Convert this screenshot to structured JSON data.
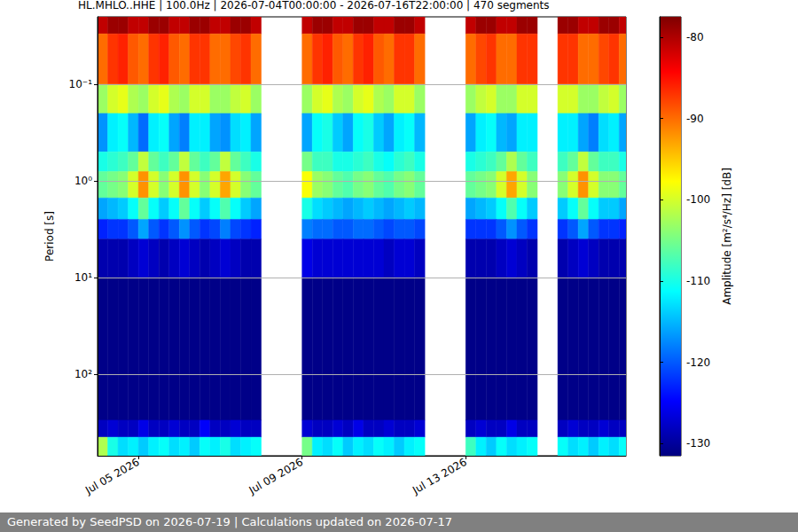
{
  "chart_data": {
    "type": "heatmap",
    "title": "HL.MHLO..HHE | 100.0Hz | 2026-07-04T00:00:00 - 2026-07-16T22:00:00 | 470 segments",
    "footer": "Generated by SeedPSD on 2026-07-19 | Calculations updated on 2026-07-17",
    "ylabel": "Period [s]",
    "colorbar_label": "Amplitude [m²/s⁴/Hz] [dB]",
    "log": "y",
    "grid": true,
    "xlim": [
      "2026-07-04T00:00:00",
      "2026-07-16T22:00:00"
    ],
    "xticks": [
      {
        "value": "2026-07-05T00:00:00",
        "label": "Jul 05 2026"
      },
      {
        "value": "2026-07-09T00:00:00",
        "label": "Jul 09 2026"
      },
      {
        "value": "2026-07-13T00:00:00",
        "label": "Jul 13 2026"
      }
    ],
    "ylim": [
      0.02,
      700
    ],
    "yticks": [
      {
        "value": 0.1,
        "label": "10⁻¹"
      },
      {
        "value": 1,
        "label": "10⁰"
      },
      {
        "value": 10,
        "label": "10¹"
      },
      {
        "value": 100,
        "label": "10²"
      }
    ],
    "clim": [
      -131.5,
      -77.5
    ],
    "cticks": [
      -130,
      -120,
      -110,
      -100,
      -90,
      -80
    ],
    "x_edges": [
      "2026-07-04T00:00:00",
      "2026-07-04T06:00:00",
      "2026-07-04T12:00:00",
      "2026-07-04T18:00:00",
      "2026-07-05T00:00:00",
      "2026-07-05T06:00:00",
      "2026-07-05T12:00:00",
      "2026-07-05T18:00:00",
      "2026-07-06T00:00:00",
      "2026-07-06T06:00:00",
      "2026-07-06T12:00:00",
      "2026-07-06T18:00:00",
      "2026-07-07T00:00:00",
      "2026-07-07T06:00:00",
      "2026-07-07T12:00:00",
      "2026-07-07T18:00:00",
      "2026-07-08T00:00:00",
      "2026-07-08T06:00:00",
      "2026-07-08T12:00:00",
      "2026-07-08T18:00:00",
      "2026-07-09T00:00:00",
      "2026-07-09T06:00:00",
      "2026-07-09T12:00:00",
      "2026-07-09T18:00:00",
      "2026-07-10T00:00:00",
      "2026-07-10T06:00:00",
      "2026-07-10T12:00:00",
      "2026-07-10T18:00:00",
      "2026-07-11T00:00:00",
      "2026-07-11T06:00:00",
      "2026-07-11T12:00:00",
      "2026-07-11T18:00:00",
      "2026-07-12T00:00:00",
      "2026-07-12T06:00:00",
      "2026-07-12T12:00:00",
      "2026-07-12T18:00:00",
      "2026-07-13T00:00:00",
      "2026-07-13T06:00:00",
      "2026-07-13T12:00:00",
      "2026-07-13T18:00:00",
      "2026-07-14T00:00:00",
      "2026-07-14T06:00:00",
      "2026-07-14T12:00:00",
      "2026-07-14T18:00:00",
      "2026-07-15T00:00:00",
      "2026-07-15T06:00:00",
      "2026-07-15T12:00:00",
      "2026-07-15T18:00:00",
      "2026-07-16T00:00:00",
      "2026-07-16T06:00:00",
      "2026-07-16T12:00:00",
      "2026-07-16T18:00:00",
      "2026-07-16T22:00:00"
    ],
    "y_edges": [
      0.02,
      0.03,
      0.1,
      0.2,
      0.5,
      0.8,
      1.5,
      2.5,
      4,
      10,
      300,
      450,
      700
    ],
    "cells": [
      [
        -81,
        -79,
        -79,
        -81,
        -81,
        -79,
        -79,
        -81,
        -81,
        -79,
        -79,
        -81,
        -81,
        -79,
        -79,
        -81,
        null,
        null,
        null,
        null,
        -81,
        -79,
        -79,
        -81,
        -81,
        -79,
        -79,
        -81,
        -81,
        -79,
        -79,
        -81,
        null,
        null,
        null,
        null,
        -81,
        -79,
        -79,
        -81,
        -81,
        -79,
        -79,
        null,
        null,
        -79,
        -79,
        -81,
        -81,
        -79,
        -79,
        -81
      ],
      [
        -90,
        -87,
        -86,
        -89,
        -90,
        -87,
        -86,
        -89,
        -90,
        -87,
        -87,
        -90,
        -90,
        -88,
        -87,
        -90,
        null,
        null,
        null,
        null,
        -90,
        -87,
        -86,
        -89,
        -90,
        -87,
        -86,
        -89,
        -90,
        -87,
        -87,
        -90,
        null,
        null,
        null,
        null,
        -90,
        -88,
        -87,
        -90,
        -90,
        -87,
        -87,
        null,
        null,
        -87,
        -87,
        -90,
        -90,
        -88,
        -87,
        -90
      ],
      [
        -103,
        -100,
        -99,
        -102,
        -103,
        -100,
        -99,
        -102,
        -103,
        -100,
        -100,
        -103,
        -103,
        -101,
        -100,
        -103,
        null,
        null,
        null,
        null,
        -103,
        -100,
        -99,
        -102,
        -103,
        -100,
        -99,
        -102,
        -103,
        -100,
        -100,
        -103,
        null,
        null,
        null,
        null,
        -103,
        -101,
        -100,
        -103,
        -103,
        -100,
        -100,
        null,
        null,
        -100,
        -100,
        -103,
        -103,
        -101,
        -100,
        -103
      ],
      [
        -117,
        -112,
        -111,
        -115,
        -119,
        -112,
        -111,
        -116,
        -118,
        -112,
        -112,
        -116,
        -117,
        -113,
        -112,
        -116,
        null,
        null,
        null,
        null,
        -116,
        -111,
        -110,
        -114,
        -116,
        -111,
        -110,
        -114,
        -116,
        -112,
        -111,
        -115,
        null,
        null,
        null,
        null,
        -116,
        -112,
        -111,
        -115,
        -116,
        -112,
        -112,
        null,
        null,
        -112,
        -112,
        -116,
        -118,
        -113,
        -112,
        -116
      ],
      [
        -110,
        -109,
        -108,
        -106,
        -101,
        -106,
        -108,
        -106,
        -101,
        -106,
        -108,
        -106,
        -101,
        -106,
        -108,
        -110,
        null,
        null,
        null,
        null,
        -105,
        -108,
        -108,
        -110,
        -110,
        -109,
        -108,
        -110,
        -111,
        -109,
        -108,
        -110,
        null,
        null,
        null,
        null,
        -110,
        -109,
        -108,
        -106,
        -102,
        -106,
        -108,
        null,
        null,
        -108,
        -106,
        -101,
        -106,
        -108,
        -108,
        -110
      ],
      [
        -106,
        -105,
        -104,
        -100,
        -92,
        -100,
        -104,
        -100,
        -92,
        -100,
        -104,
        -100,
        -93,
        -100,
        -104,
        -106,
        null,
        null,
        null,
        null,
        -98,
        -103,
        -104,
        -106,
        -107,
        -105,
        -104,
        -106,
        -107,
        -105,
        -104,
        -106,
        null,
        null,
        null,
        null,
        -106,
        -105,
        -104,
        -100,
        -93,
        -100,
        -104,
        null,
        null,
        -104,
        -100,
        -92,
        -100,
        -104,
        -104,
        -106
      ],
      [
        -116,
        -115,
        -114,
        -111,
        -106,
        -111,
        -114,
        -111,
        -106,
        -111,
        -114,
        -111,
        -107,
        -111,
        -114,
        -116,
        null,
        null,
        null,
        null,
        -110,
        -113,
        -114,
        -115,
        -116,
        -115,
        -114,
        -115,
        -116,
        -115,
        -114,
        -115,
        null,
        null,
        null,
        null,
        -116,
        -115,
        -114,
        -111,
        -107,
        -111,
        -114,
        null,
        null,
        -114,
        -111,
        -106,
        -111,
        -114,
        -114,
        -116
      ],
      [
        -123,
        -122,
        -122,
        -120,
        -116,
        -120,
        -122,
        -120,
        -117,
        -120,
        -122,
        -121,
        -118,
        -121,
        -122,
        -123,
        null,
        null,
        null,
        null,
        -118,
        -119,
        -119,
        -120,
        -120,
        -119,
        -119,
        -120,
        -121,
        -120,
        -120,
        -121,
        null,
        null,
        null,
        null,
        -122,
        -122,
        -122,
        -120,
        -117,
        -120,
        -122,
        null,
        null,
        -122,
        -120,
        -116,
        -120,
        -122,
        -122,
        -123
      ],
      [
        -129,
        -129,
        -129,
        -128,
        -127,
        -128,
        -129,
        -128,
        -127,
        -128,
        -129,
        -128,
        -127,
        -128,
        -129,
        -129,
        null,
        null,
        null,
        null,
        -126,
        -127,
        -127,
        -127,
        -127,
        -127,
        -127,
        -127,
        -128,
        -127,
        -127,
        -128,
        null,
        null,
        null,
        null,
        -129,
        -129,
        -129,
        -128,
        -127,
        -128,
        -129,
        null,
        null,
        -129,
        -128,
        -127,
        -128,
        -129,
        -129,
        -129
      ],
      [
        -131,
        -131,
        -131,
        -131,
        -131,
        -131,
        -131,
        -131,
        -131,
        -131,
        -131,
        -131,
        -131,
        -131,
        -131,
        -131,
        null,
        null,
        null,
        null,
        -131,
        -131,
        -131,
        -131,
        -131,
        -131,
        -131,
        -131,
        -131,
        -131,
        -131,
        -131,
        null,
        null,
        null,
        null,
        -131,
        -131,
        -131,
        -131,
        -131,
        -131,
        -131,
        null,
        null,
        -131,
        -131,
        -131,
        -131,
        -131,
        -131,
        -131
      ],
      [
        -128,
        -127,
        -128,
        -128,
        -126,
        -128,
        -128,
        -127,
        -128,
        -128,
        -125,
        -128,
        -128,
        -127,
        -128,
        -128,
        null,
        null,
        null,
        null,
        -127,
        -128,
        -128,
        -127,
        -128,
        -126,
        -128,
        -128,
        -127,
        -128,
        -128,
        -127,
        null,
        null,
        null,
        null,
        -128,
        -127,
        -128,
        -128,
        -126,
        -128,
        -128,
        null,
        null,
        -128,
        -127,
        -128,
        -128,
        -127,
        -128,
        -128
      ],
      [
        -102,
        -110,
        -113,
        -112,
        -114,
        -112,
        -111,
        -113,
        -112,
        -114,
        -111,
        -112,
        -110,
        -113,
        -112,
        -111,
        null,
        null,
        null,
        null,
        -105,
        -112,
        -113,
        -111,
        -114,
        -112,
        -113,
        -111,
        -112,
        -114,
        -112,
        -111,
        null,
        null,
        null,
        null,
        -108,
        -112,
        -114,
        -111,
        -113,
        -112,
        -111,
        null,
        null,
        -111,
        -113,
        -112,
        -114,
        -112,
        -113,
        -111
      ]
    ]
  }
}
